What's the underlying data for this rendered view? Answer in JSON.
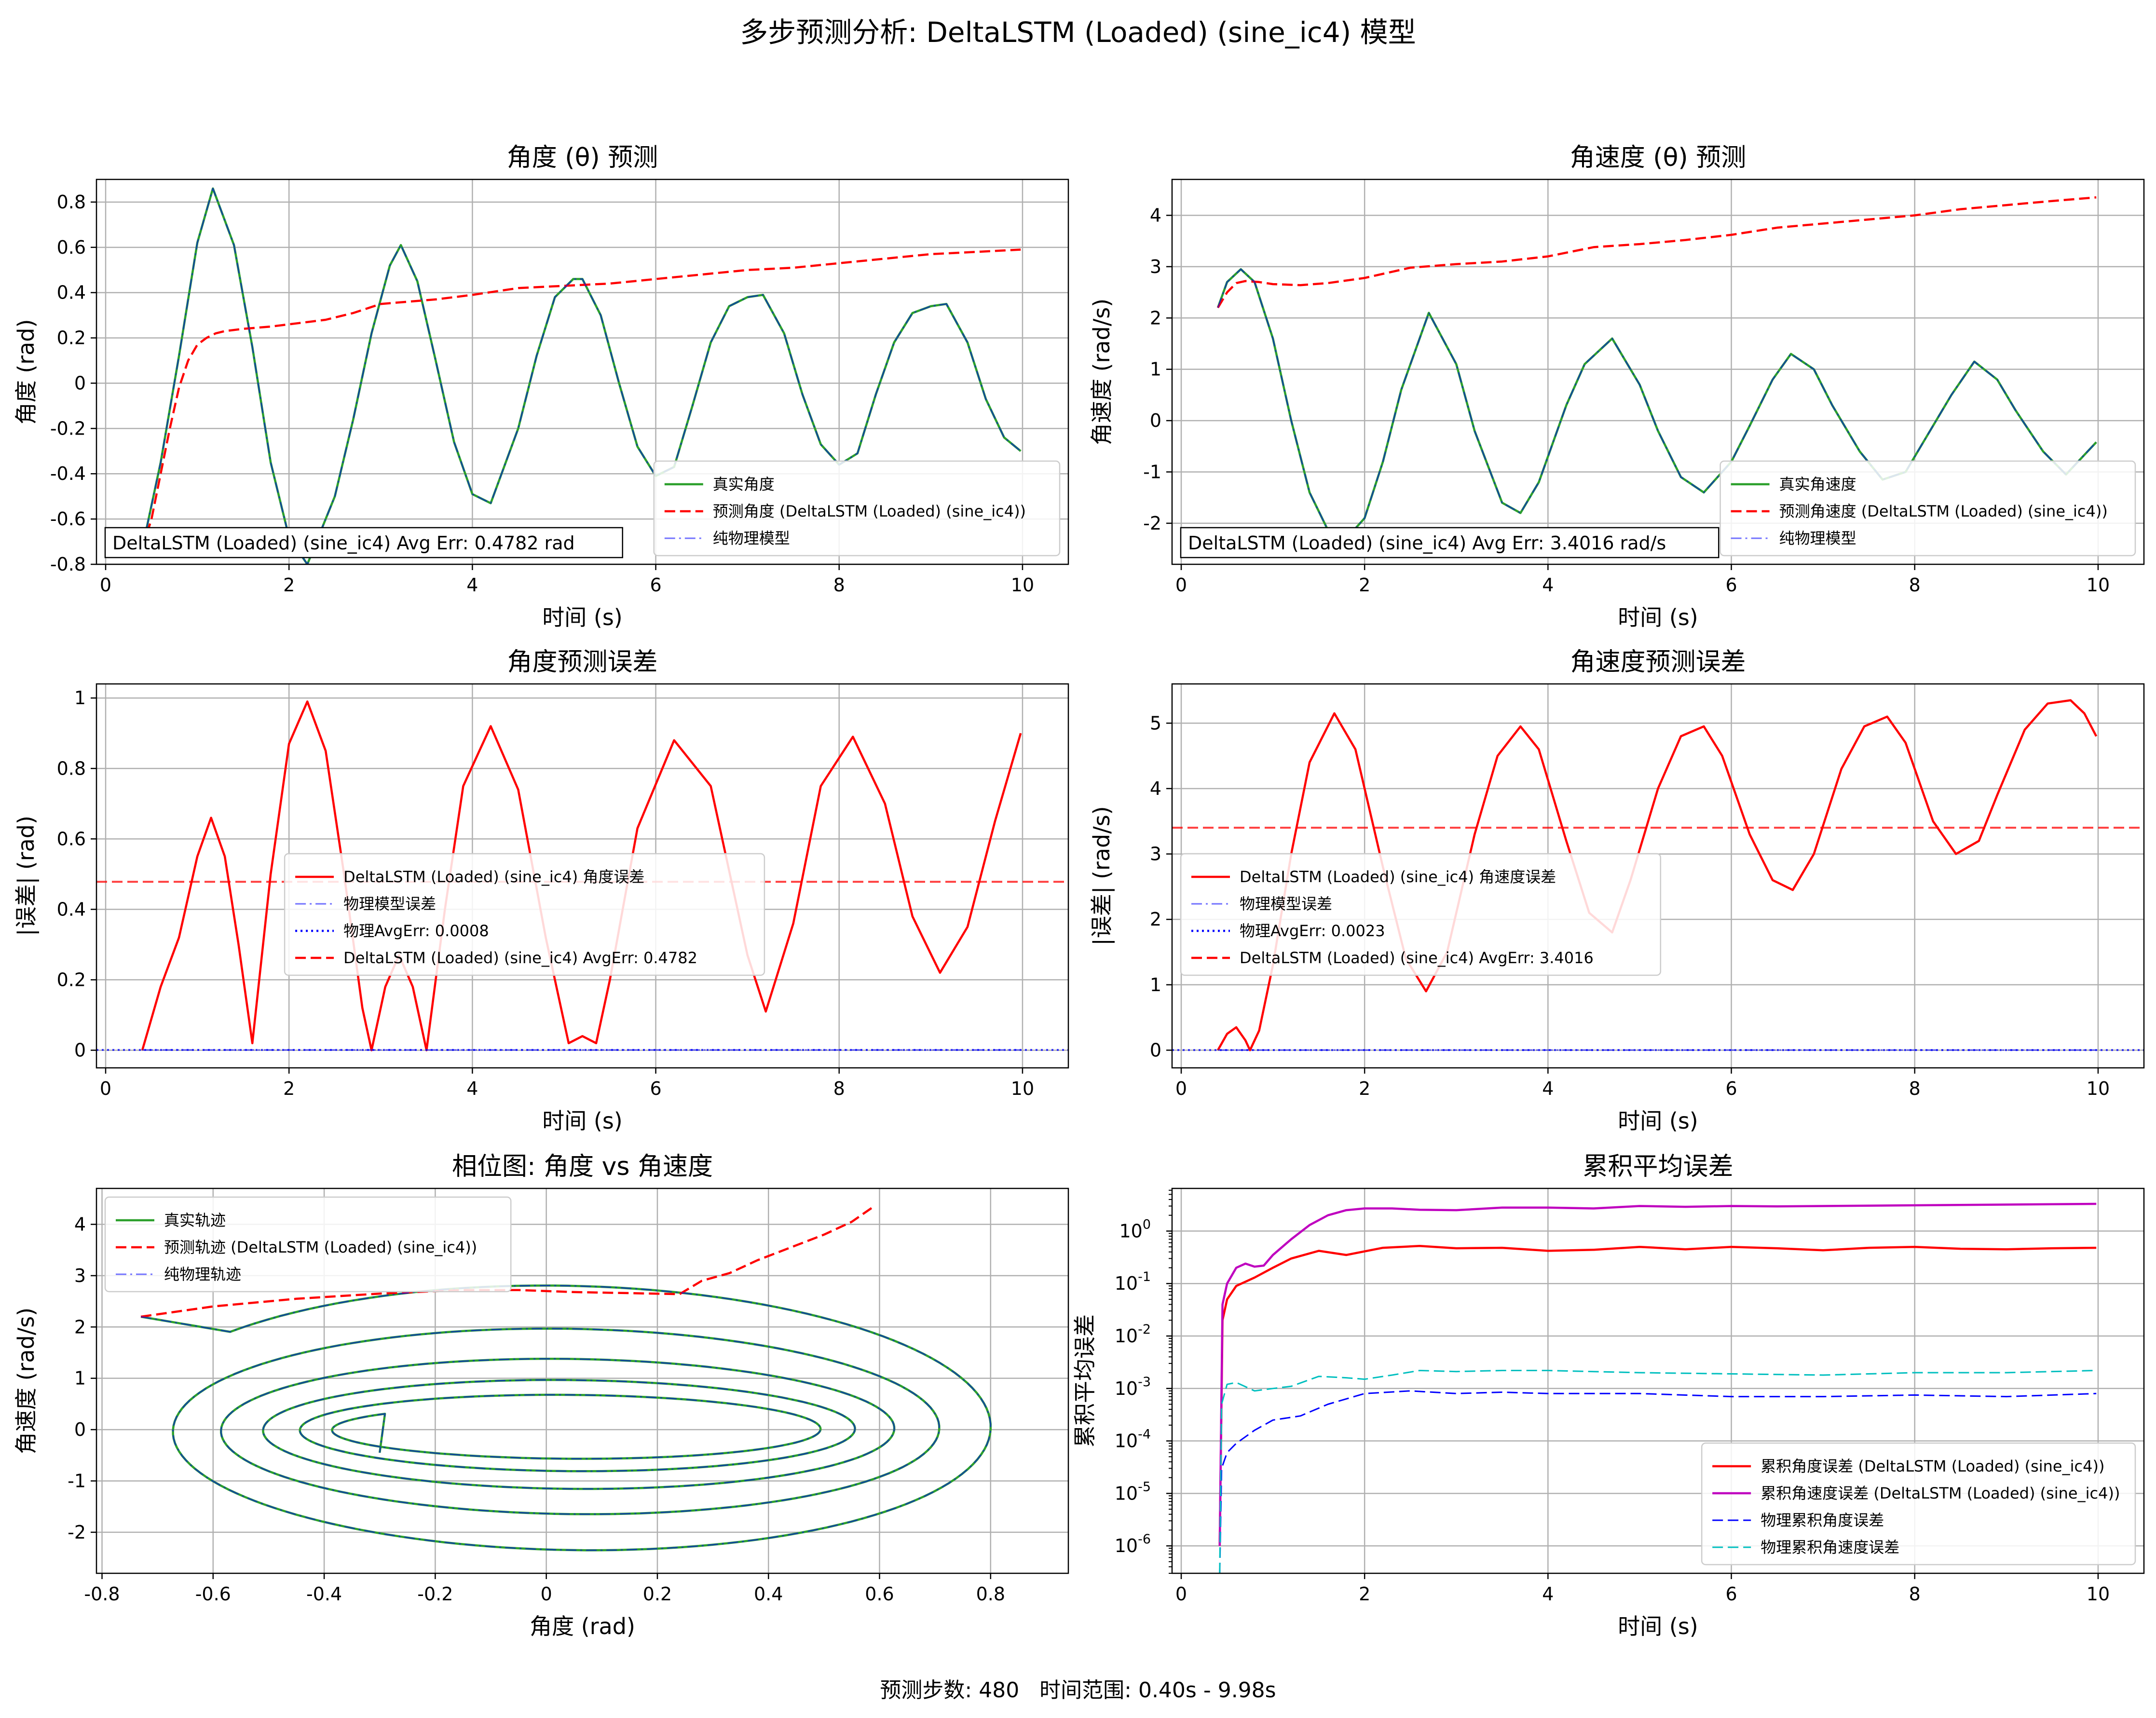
{
  "figure": {
    "title": "多步预测分析: DeltaLSTM (Loaded) (sine_ic4) 模型",
    "footer": "预测步数: 480   时间范围: 0.40s - 9.98s"
  },
  "chart_data": [
    {
      "id": "angle",
      "type": "line",
      "title": "角度 (θ) 预测",
      "xlabel": "时间 (s)",
      "ylabel": "角度 (rad)",
      "xlim": [
        -0.1,
        10.5
      ],
      "ylim": [
        -0.8,
        0.9
      ],
      "xticks": [
        0,
        2,
        4,
        6,
        8,
        10
      ],
      "yticks": [
        -0.8,
        -0.6,
        -0.4,
        -0.2,
        0.0,
        0.2,
        0.4,
        0.6,
        0.8
      ],
      "grid": true,
      "legend": "lower right",
      "annotation": "DeltaLSTM (Loaded) (sine_ic4) Avg Err: 0.4782 rad",
      "series": [
        {
          "name": "真实角度",
          "color": "#2ca02c",
          "style": "solid",
          "x": [
            0.4,
            0.6,
            0.8,
            1.0,
            1.17,
            1.4,
            1.6,
            1.8,
            2.0,
            2.2,
            2.5,
            2.7,
            2.9,
            3.1,
            3.22,
            3.4,
            3.6,
            3.8,
            4.0,
            4.2,
            4.5,
            4.7,
            4.9,
            5.1,
            5.2,
            5.4,
            5.6,
            5.8,
            6.0,
            6.2,
            6.4,
            6.6,
            6.8,
            7.0,
            7.17,
            7.4,
            7.6,
            7.8,
            8.0,
            8.2,
            8.4,
            8.6,
            8.8,
            9.0,
            9.17,
            9.4,
            9.6,
            9.8,
            9.98
          ],
          "y": [
            -0.73,
            -0.35,
            0.12,
            0.62,
            0.86,
            0.61,
            0.16,
            -0.35,
            -0.68,
            -0.8,
            -0.5,
            -0.16,
            0.22,
            0.52,
            0.61,
            0.45,
            0.1,
            -0.26,
            -0.49,
            -0.53,
            -0.2,
            0.12,
            0.38,
            0.46,
            0.46,
            0.3,
            0.0,
            -0.28,
            -0.41,
            -0.37,
            -0.1,
            0.18,
            0.34,
            0.38,
            0.39,
            0.22,
            -0.05,
            -0.27,
            -0.36,
            -0.31,
            -0.05,
            0.18,
            0.31,
            0.34,
            0.35,
            0.18,
            -0.07,
            -0.24,
            -0.3
          ]
        },
        {
          "name": "预测角度 (DeltaLSTM (Loaded) (sine_ic4))",
          "color": "#ff0000",
          "style": "dashed",
          "x": [
            0.4,
            0.5,
            0.6,
            0.7,
            0.8,
            0.9,
            1.0,
            1.1,
            1.2,
            1.3,
            1.5,
            1.8,
            2.0,
            2.4,
            2.7,
            3.0,
            3.3,
            3.6,
            4.0,
            4.5,
            5.0,
            5.5,
            6.0,
            6.5,
            7.0,
            7.5,
            8.0,
            8.5,
            9.0,
            9.5,
            9.98
          ],
          "y": [
            -0.73,
            -0.6,
            -0.4,
            -0.2,
            -0.02,
            0.1,
            0.17,
            0.2,
            0.22,
            0.23,
            0.24,
            0.25,
            0.26,
            0.28,
            0.31,
            0.35,
            0.36,
            0.37,
            0.39,
            0.42,
            0.43,
            0.44,
            0.46,
            0.48,
            0.5,
            0.51,
            0.53,
            0.55,
            0.57,
            0.58,
            0.59
          ]
        },
        {
          "name": "纯物理模型",
          "color": "#0000ff",
          "style": "dashdot",
          "ref": "真实角度"
        }
      ]
    },
    {
      "id": "angvel",
      "type": "line",
      "title": "角速度 (θ) 预测",
      "xlabel": "时间 (s)",
      "ylabel": "角速度 (rad/s)",
      "xlim": [
        -0.1,
        10.5
      ],
      "ylim": [
        -2.8,
        4.7
      ],
      "xticks": [
        0,
        2,
        4,
        6,
        8,
        10
      ],
      "yticks": [
        -2,
        -1,
        0,
        1,
        2,
        3,
        4
      ],
      "grid": true,
      "legend": "lower right",
      "annotation": "DeltaLSTM (Loaded) (sine_ic4) Avg Err: 3.4016 rad/s",
      "series": [
        {
          "name": "真实角速度",
          "color": "#2ca02c",
          "style": "solid",
          "x": [
            0.4,
            0.5,
            0.65,
            0.8,
            1.0,
            1.2,
            1.4,
            1.7,
            2.0,
            2.2,
            2.4,
            2.7,
            3.0,
            3.2,
            3.5,
            3.7,
            3.9,
            4.2,
            4.4,
            4.7,
            5.0,
            5.2,
            5.45,
            5.7,
            6.0,
            6.2,
            6.45,
            6.65,
            6.9,
            7.1,
            7.4,
            7.65,
            7.9,
            8.1,
            8.4,
            8.65,
            8.9,
            9.1,
            9.4,
            9.65,
            9.98
          ],
          "y": [
            2.2,
            2.7,
            2.95,
            2.7,
            1.6,
            0.0,
            -1.4,
            -2.5,
            -1.9,
            -0.8,
            0.6,
            2.1,
            1.1,
            -0.2,
            -1.6,
            -1.8,
            -1.2,
            0.3,
            1.1,
            1.6,
            0.7,
            -0.2,
            -1.1,
            -1.4,
            -0.8,
            -0.1,
            0.8,
            1.3,
            1.0,
            0.3,
            -0.6,
            -1.15,
            -1.0,
            -0.4,
            0.5,
            1.15,
            0.8,
            0.2,
            -0.6,
            -1.05,
            -0.42
          ]
        },
        {
          "name": "预测角速度 (DeltaLSTM (Loaded) (sine_ic4))",
          "color": "#ff0000",
          "style": "dashed",
          "x": [
            0.4,
            0.5,
            0.6,
            0.7,
            0.85,
            1.0,
            1.3,
            1.6,
            2.0,
            2.5,
            3.0,
            3.5,
            4.0,
            4.5,
            5.0,
            5.5,
            6.0,
            6.5,
            7.0,
            7.5,
            8.0,
            8.5,
            9.0,
            9.5,
            9.98
          ],
          "y": [
            2.2,
            2.5,
            2.68,
            2.72,
            2.7,
            2.66,
            2.64,
            2.68,
            2.78,
            2.98,
            3.05,
            3.1,
            3.2,
            3.38,
            3.44,
            3.52,
            3.62,
            3.76,
            3.84,
            3.92,
            4.0,
            4.12,
            4.2,
            4.28,
            4.35
          ]
        },
        {
          "name": "纯物理模型",
          "color": "#0000ff",
          "style": "dashdot",
          "ref": "真实角速度"
        }
      ]
    },
    {
      "id": "angle_err",
      "type": "line",
      "title": "角度预测误差",
      "xlabel": "时间 (s)",
      "ylabel": "|误差| (rad)",
      "xlim": [
        -0.1,
        10.5
      ],
      "ylim": [
        -0.05,
        1.04
      ],
      "xticks": [
        0,
        2,
        4,
        6,
        8,
        10
      ],
      "yticks": [
        0.0,
        0.2,
        0.4,
        0.6,
        0.8,
        1.0
      ],
      "grid": true,
      "legend": "center",
      "series": [
        {
          "name": "DeltaLSTM (Loaded) (sine_ic4) 角度误差",
          "color": "#ff0000",
          "style": "solid",
          "x": [
            0.4,
            0.6,
            0.8,
            1.0,
            1.15,
            1.3,
            1.45,
            1.6,
            1.8,
            2.0,
            2.2,
            2.4,
            2.6,
            2.8,
            2.9,
            3.05,
            3.2,
            3.35,
            3.5,
            3.7,
            3.9,
            4.2,
            4.5,
            4.8,
            5.05,
            5.2,
            5.35,
            5.5,
            5.8,
            6.2,
            6.6,
            7.0,
            7.2,
            7.5,
            7.8,
            8.15,
            8.5,
            8.8,
            9.1,
            9.4,
            9.7,
            9.98
          ],
          "y": [
            0.0,
            0.18,
            0.32,
            0.55,
            0.66,
            0.55,
            0.3,
            0.02,
            0.5,
            0.87,
            0.99,
            0.85,
            0.5,
            0.12,
            0.0,
            0.18,
            0.27,
            0.18,
            0.0,
            0.4,
            0.75,
            0.92,
            0.74,
            0.32,
            0.02,
            0.04,
            0.02,
            0.2,
            0.63,
            0.88,
            0.75,
            0.27,
            0.11,
            0.36,
            0.75,
            0.89,
            0.7,
            0.38,
            0.22,
            0.35,
            0.65,
            0.9
          ]
        },
        {
          "name": "物理模型误差",
          "color": "#0000ff",
          "style": "dashdot",
          "x": [
            0.4,
            9.98
          ],
          "y": [
            0.0008,
            0.0008
          ]
        },
        {
          "name": "物理AvgErr: 0.0008",
          "color": "#0000ff",
          "style": "dotted",
          "hline": 0.0008
        },
        {
          "name": "DeltaLSTM (Loaded) (sine_ic4) AvgErr: 0.4782",
          "color": "#ff0000",
          "style": "dashed",
          "hline": 0.4782
        }
      ]
    },
    {
      "id": "angvel_err",
      "type": "line",
      "title": "角速度预测误差",
      "xlabel": "时间 (s)",
      "ylabel": "|误差| (rad/s)",
      "xlim": [
        -0.1,
        10.5
      ],
      "ylim": [
        -0.27,
        5.6
      ],
      "xticks": [
        0,
        2,
        4,
        6,
        8,
        10
      ],
      "yticks": [
        0,
        1,
        2,
        3,
        4,
        5
      ],
      "grid": true,
      "legend": "center left",
      "series": [
        {
          "name": "DeltaLSTM (Loaded) (sine_ic4) 角速度误差",
          "color": "#ff0000",
          "style": "solid",
          "x": [
            0.4,
            0.5,
            0.6,
            0.7,
            0.75,
            0.85,
            1.0,
            1.2,
            1.4,
            1.67,
            1.9,
            2.2,
            2.45,
            2.67,
            2.9,
            3.2,
            3.45,
            3.7,
            3.9,
            4.2,
            4.45,
            4.7,
            4.9,
            5.2,
            5.45,
            5.7,
            5.9,
            6.2,
            6.45,
            6.67,
            6.9,
            7.2,
            7.45,
            7.7,
            7.9,
            8.2,
            8.45,
            8.7,
            8.9,
            9.2,
            9.45,
            9.7,
            9.85,
            9.98
          ],
          "y": [
            0.0,
            0.25,
            0.35,
            0.15,
            0.0,
            0.3,
            1.3,
            3.0,
            4.4,
            5.15,
            4.6,
            2.8,
            1.4,
            0.9,
            1.5,
            3.3,
            4.5,
            4.95,
            4.6,
            3.2,
            2.1,
            1.8,
            2.6,
            4.0,
            4.8,
            4.95,
            4.5,
            3.3,
            2.6,
            2.45,
            3.0,
            4.3,
            4.95,
            5.1,
            4.7,
            3.5,
            3.0,
            3.2,
            3.9,
            4.9,
            5.3,
            5.35,
            5.15,
            4.8
          ]
        },
        {
          "name": "物理模型误差",
          "color": "#0000ff",
          "style": "dashdot",
          "x": [
            0.4,
            9.98
          ],
          "y": [
            0.0023,
            0.0023
          ]
        },
        {
          "name": "物理AvgErr: 0.0023",
          "color": "#0000ff",
          "style": "dotted",
          "hline": 0.0023
        },
        {
          "name": "DeltaLSTM (Loaded) (sine_ic4) AvgErr: 3.4016",
          "color": "#ff0000",
          "style": "dashed",
          "hline": 3.4016
        }
      ]
    },
    {
      "id": "phase",
      "type": "line",
      "title": "相位图: 角度 vs 角速度",
      "xlabel": "角度 (rad)",
      "ylabel": "角速度 (rad/s)",
      "xlim": [
        -0.81,
        0.94
      ],
      "ylim": [
        -2.8,
        4.7
      ],
      "xticks": [
        -0.8,
        -0.6,
        -0.4,
        -0.2,
        0.0,
        0.2,
        0.4,
        0.6,
        0.8
      ],
      "yticks": [
        -2,
        -1,
        0,
        1,
        2,
        3,
        4
      ],
      "grid": true,
      "legend": "upper left",
      "series": [
        {
          "name": "真实轨迹",
          "color": "#2ca02c",
          "style": "solid",
          "spiral": {
            "start": [
              -0.73,
              2.2
            ],
            "end": [
              -0.3,
              -0.45
            ]
          }
        },
        {
          "name": "预测轨迹 (DeltaLSTM (Loaded) (sine_ic4))",
          "color": "#ff0000",
          "style": "dashed",
          "x": [
            -0.73,
            -0.6,
            -0.45,
            -0.3,
            -0.15,
            -0.05,
            0.05,
            0.15,
            0.24,
            0.28,
            0.33,
            0.38,
            0.44,
            0.5,
            0.55,
            0.59
          ],
          "y": [
            2.2,
            2.4,
            2.55,
            2.65,
            2.72,
            2.72,
            2.68,
            2.66,
            2.64,
            2.9,
            3.05,
            3.3,
            3.55,
            3.8,
            4.05,
            4.35
          ]
        },
        {
          "name": "纯物理轨迹",
          "color": "#0000ff",
          "style": "dashdot",
          "ref": "真实轨迹"
        }
      ]
    },
    {
      "id": "cum",
      "type": "line",
      "title": "累积平均误差",
      "xlabel": "时间 (s)",
      "ylabel": "累积平均误差",
      "yscale": "log",
      "xlim": [
        -0.1,
        10.5
      ],
      "ylim": [
        3e-07,
        6.5
      ],
      "xticks": [
        0,
        2,
        4,
        6,
        8,
        10
      ],
      "yticks_exp": [
        -6,
        -5,
        -4,
        -3,
        -2,
        -1,
        0
      ],
      "ytick_base": "10",
      "grid": true,
      "legend": "lower right",
      "series": [
        {
          "name": "累积角度误差 (DeltaLSTM (Loaded) (sine_ic4))",
          "color": "#ff0000",
          "style": "solid",
          "x": [
            0.42,
            0.45,
            0.5,
            0.6,
            0.8,
            1.0,
            1.2,
            1.5,
            1.8,
            2.2,
            2.6,
            3.0,
            3.5,
            4.0,
            4.5,
            5.0,
            5.5,
            6.0,
            6.5,
            7.0,
            7.5,
            8.0,
            8.5,
            9.0,
            9.5,
            9.98
          ],
          "y": [
            1e-06,
            0.02,
            0.05,
            0.09,
            0.13,
            0.2,
            0.3,
            0.42,
            0.35,
            0.48,
            0.52,
            0.47,
            0.48,
            0.42,
            0.44,
            0.5,
            0.45,
            0.5,
            0.47,
            0.43,
            0.48,
            0.5,
            0.46,
            0.45,
            0.47,
            0.48
          ]
        },
        {
          "name": "累积角速度误差 (DeltaLSTM (Loaded) (sine_ic4))",
          "color": "#bf00bf",
          "style": "solid",
          "x": [
            0.42,
            0.45,
            0.5,
            0.6,
            0.7,
            0.8,
            0.9,
            1.0,
            1.2,
            1.4,
            1.6,
            1.8,
            2.0,
            2.3,
            2.6,
            3.0,
            3.5,
            4.0,
            4.5,
            5.0,
            5.5,
            6.0,
            6.5,
            7.0,
            7.5,
            8.0,
            8.5,
            9.0,
            9.5,
            9.98
          ],
          "y": [
            1e-06,
            0.04,
            0.1,
            0.2,
            0.24,
            0.21,
            0.22,
            0.35,
            0.7,
            1.3,
            2.0,
            2.5,
            2.7,
            2.7,
            2.55,
            2.5,
            2.8,
            2.8,
            2.7,
            3.0,
            2.9,
            3.0,
            2.95,
            3.0,
            3.05,
            3.1,
            3.15,
            3.2,
            3.25,
            3.3
          ]
        },
        {
          "name": "物理累积角度误差",
          "color": "#0000ff",
          "style": "dashed",
          "thin": true,
          "x": [
            0.42,
            0.44,
            0.5,
            0.6,
            0.8,
            1.0,
            1.3,
            1.6,
            2.0,
            2.5,
            3.0,
            3.5,
            4.0,
            5.0,
            6.0,
            7.0,
            8.0,
            9.0,
            9.98
          ],
          "y": [
            3e-07,
            3e-05,
            6e-05,
            9e-05,
            0.00016,
            0.00025,
            0.0003,
            0.0005,
            0.0008,
            0.0009,
            0.0008,
            0.00085,
            0.0008,
            0.0008,
            0.0007,
            0.0007,
            0.00075,
            0.0007,
            0.0008
          ]
        },
        {
          "name": "物理累积角速度误差",
          "color": "#00bfbf",
          "style": "dashed",
          "thin": true,
          "x": [
            0.42,
            0.44,
            0.5,
            0.6,
            0.8,
            1.0,
            1.2,
            1.5,
            1.8,
            2.0,
            2.3,
            2.6,
            3.0,
            3.5,
            4.0,
            5.0,
            6.0,
            7.0,
            8.0,
            9.0,
            9.98
          ],
          "y": [
            3e-07,
            0.0005,
            0.0012,
            0.0013,
            0.0009,
            0.001,
            0.0011,
            0.0017,
            0.0016,
            0.0015,
            0.0018,
            0.0022,
            0.0021,
            0.0022,
            0.0022,
            0.002,
            0.0019,
            0.0018,
            0.002,
            0.002,
            0.0022
          ]
        }
      ]
    }
  ]
}
